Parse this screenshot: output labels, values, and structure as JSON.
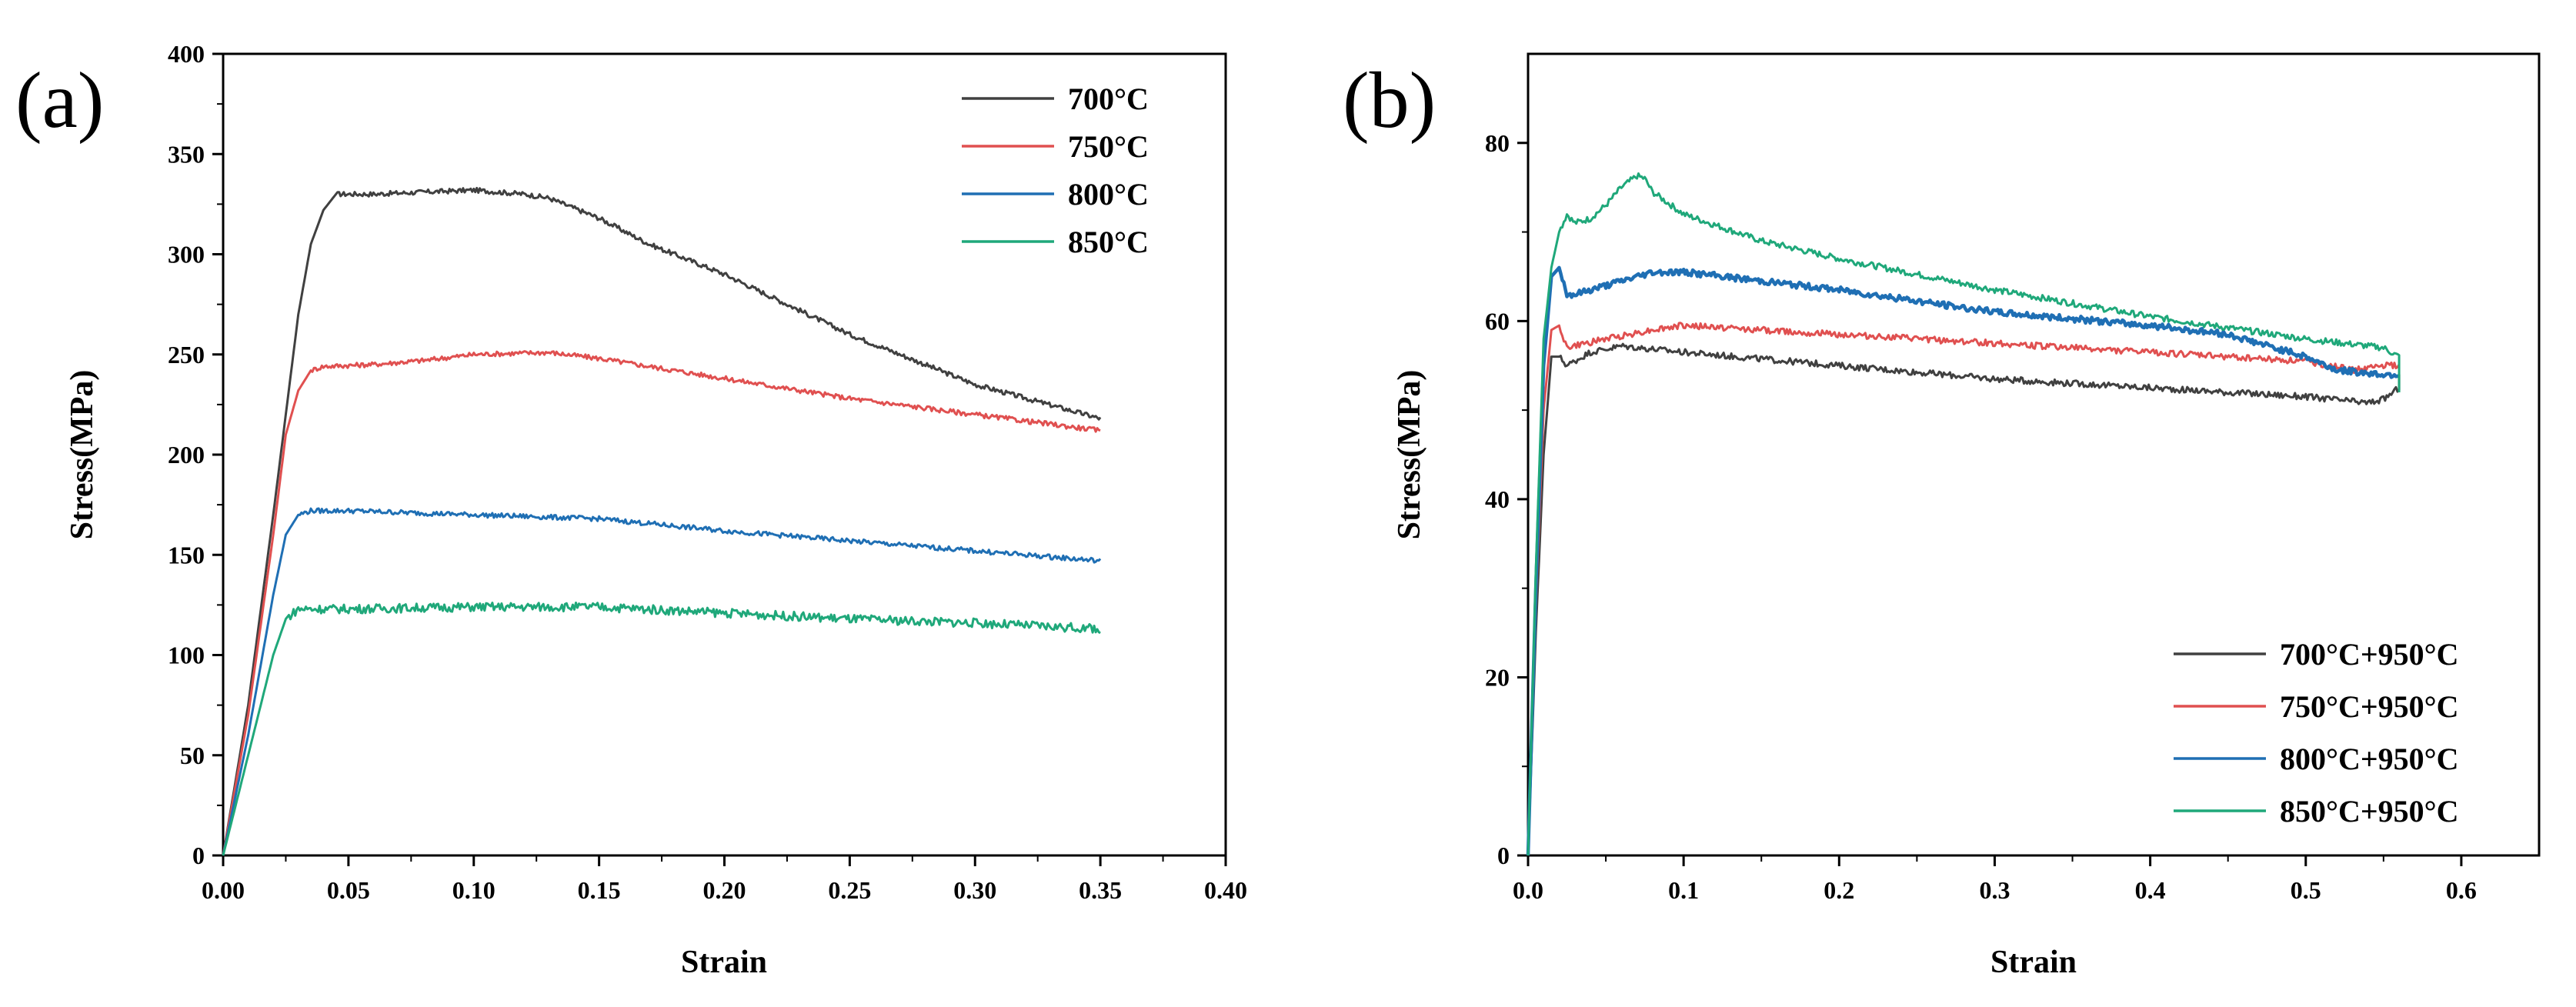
{
  "chart_data": [
    {
      "type": "line",
      "panel_label": "(a)",
      "xlabel": "Strain",
      "ylabel": "Stress(MPa)",
      "xlim": [
        0,
        0.4
      ],
      "ylim": [
        0,
        400
      ],
      "xticks": [
        "0.00",
        "0.05",
        "0.10",
        "0.15",
        "0.20",
        "0.25",
        "0.30",
        "0.35",
        "0.40"
      ],
      "yticks": [
        "0",
        "50",
        "100",
        "150",
        "200",
        "250",
        "300",
        "350",
        "400"
      ],
      "legend_position": "top-right",
      "series": [
        {
          "name": "700°C",
          "color": "#404040",
          "noise": 1.2,
          "x": [
            0,
            0.01,
            0.02,
            0.03,
            0.035,
            0.04,
            0.045,
            0.05,
            0.06,
            0.08,
            0.1,
            0.12,
            0.13,
            0.15,
            0.17,
            0.2,
            0.25,
            0.3,
            0.35
          ],
          "y": [
            0,
            75,
            170,
            270,
            305,
            322,
            330,
            330,
            330,
            331,
            332,
            330,
            328,
            318,
            305,
            290,
            260,
            235,
            218
          ]
        },
        {
          "name": "750°C",
          "color": "#e05050",
          "noise": 1.2,
          "x": [
            0,
            0.01,
            0.02,
            0.025,
            0.03,
            0.035,
            0.04,
            0.06,
            0.08,
            0.1,
            0.13,
            0.15,
            0.2,
            0.25,
            0.3,
            0.35
          ],
          "y": [
            0,
            70,
            160,
            210,
            232,
            242,
            244,
            245,
            247,
            250,
            251,
            248,
            238,
            228,
            220,
            212
          ]
        },
        {
          "name": "800°C",
          "color": "#1f6fb4",
          "noise": 1.2,
          "x": [
            0,
            0.01,
            0.02,
            0.025,
            0.03,
            0.035,
            0.05,
            0.1,
            0.15,
            0.2,
            0.25,
            0.3,
            0.35
          ],
          "y": [
            0,
            60,
            130,
            160,
            170,
            172,
            172,
            170,
            168,
            162,
            157,
            152,
            147
          ]
        },
        {
          "name": "850°C",
          "color": "#1fa87a",
          "noise": 2.2,
          "x": [
            0,
            0.01,
            0.02,
            0.025,
            0.03,
            0.05,
            0.1,
            0.15,
            0.2,
            0.25,
            0.3,
            0.35
          ],
          "y": [
            0,
            50,
            100,
            118,
            123,
            123,
            124,
            124,
            121,
            118,
            116,
            113
          ]
        }
      ]
    },
    {
      "type": "line",
      "panel_label": "(b)",
      "xlabel": "Strain",
      "ylabel": "Stress(MPa)",
      "xlim": [
        0,
        0.65
      ],
      "ylim": [
        0,
        90
      ],
      "xticks": [
        "0.0",
        "0.1",
        "0.2",
        "0.3",
        "0.4",
        "0.5",
        "0.6"
      ],
      "yticks": [
        "0",
        "20",
        "40",
        "60",
        "80"
      ],
      "legend_position": "bottom-right",
      "series": [
        {
          "name": "700°C+950°C",
          "color": "#404040",
          "noise": 0.35,
          "x": [
            0,
            0.005,
            0.01,
            0.015,
            0.02,
            0.025,
            0.04,
            0.06,
            0.1,
            0.2,
            0.3,
            0.4,
            0.5,
            0.54,
            0.55,
            0.56,
            0.56
          ],
          "y": [
            0,
            25,
            45,
            56,
            56,
            55,
            56.5,
            57.2,
            56.5,
            55,
            53.5,
            52.5,
            51.5,
            50.8,
            51.2,
            52.5,
            54
          ]
        },
        {
          "name": "750°C+950°C",
          "color": "#e05050",
          "noise": 0.35,
          "x": [
            0,
            0.005,
            0.01,
            0.015,
            0.02,
            0.025,
            0.05,
            0.08,
            0.1,
            0.2,
            0.3,
            0.4,
            0.5,
            0.53,
            0.55,
            0.56
          ],
          "y": [
            0,
            28,
            50,
            59,
            59.5,
            57,
            58,
            59,
            59.5,
            58.5,
            57.5,
            56.5,
            55.5,
            54.5,
            55,
            55
          ]
        },
        {
          "name": "800°C+950°C",
          "color": "#1f6fb4",
          "noise": 0.35,
          "x": [
            0,
            0.005,
            0.01,
            0.015,
            0.02,
            0.025,
            0.03,
            0.05,
            0.08,
            0.1,
            0.15,
            0.2,
            0.3,
            0.4,
            0.45,
            0.5,
            0.52,
            0.55,
            0.56
          ],
          "y": [
            0,
            30,
            55,
            65,
            66,
            63,
            63,
            64,
            65.5,
            65.5,
            64.5,
            63.5,
            61,
            59.5,
            58.5,
            56,
            54.5,
            54,
            54
          ]
        },
        {
          "name": "850°C+950°C",
          "color": "#1fa87a",
          "noise": 0.35,
          "x": [
            0,
            0.005,
            0.01,
            0.015,
            0.02,
            0.025,
            0.03,
            0.04,
            0.05,
            0.06,
            0.07,
            0.075,
            0.08,
            0.1,
            0.15,
            0.2,
            0.3,
            0.4,
            0.5,
            0.55,
            0.56,
            0.56
          ],
          "y": [
            0,
            32,
            58,
            66,
            70,
            72,
            71,
            71.5,
            73,
            75,
            76.3,
            76,
            74.5,
            72,
            69,
            67,
            63.5,
            60.5,
            58,
            57,
            56,
            52
          ]
        }
      ]
    }
  ]
}
